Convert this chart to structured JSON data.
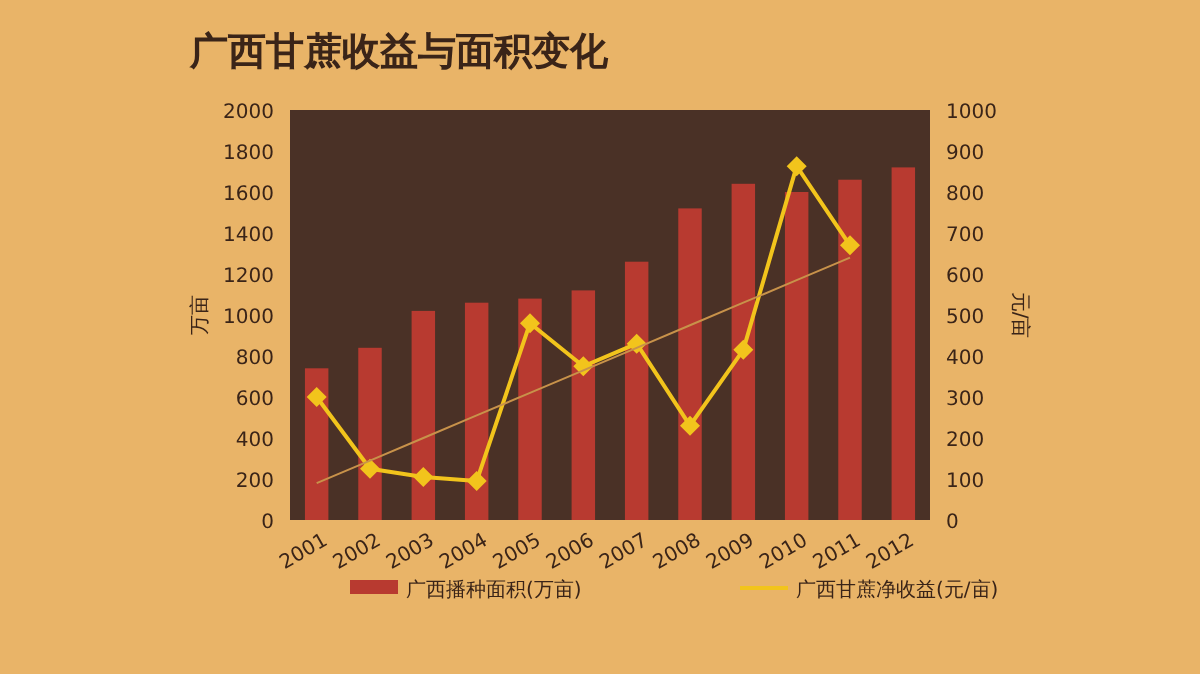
{
  "chart_data": {
    "type": "bar",
    "title": "广西甘蔗收益与面积变化",
    "ylabel": "万亩",
    "y2label": "元/亩",
    "categories": [
      "2001",
      "2002",
      "2003",
      "2004",
      "2005",
      "2006",
      "2007",
      "2008",
      "2009",
      "2010",
      "2011",
      "2012"
    ],
    "series": [
      {
        "name": "广西播种面积(万亩)",
        "color": "#b83a30",
        "values": [
          740,
          840,
          1020,
          1060,
          1080,
          1120,
          1260,
          1520,
          1640,
          1600,
          1660,
          1720
        ]
      },
      {
        "name": "广西甘蔗净收益(元/亩)",
        "type": "line",
        "axis": "y2",
        "marker": "diamond",
        "color": "#f2c41c",
        "values": [
          300,
          125,
          105,
          95,
          480,
          375,
          430,
          230,
          415,
          863,
          670,
          null
        ]
      },
      {
        "type": "line",
        "axis": "y2",
        "marker": "none",
        "color": "#c8924a",
        "values": [
          90,
          145,
          200,
          255,
          310,
          365,
          420,
          475,
          530,
          585,
          640,
          null
        ]
      }
    ],
    "ylim": [
      0,
      2000
    ],
    "yticks": [
      0,
      200,
      400,
      600,
      800,
      1000,
      1200,
      1400,
      1600,
      1800,
      2000
    ],
    "y2lim": [
      0,
      1000
    ],
    "y2ticks": [
      0,
      100,
      200,
      300,
      400,
      500,
      600,
      700,
      800,
      900,
      1000
    ],
    "legend": "bottom"
  }
}
